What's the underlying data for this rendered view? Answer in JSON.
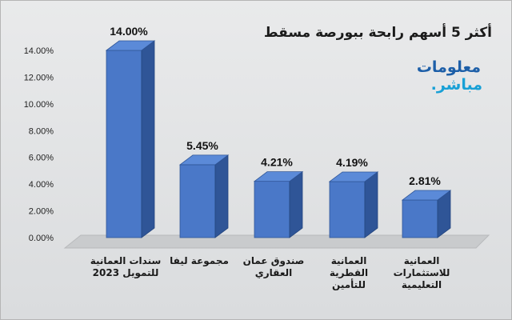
{
  "chart_data": {
    "type": "bar",
    "title": "أكثر 5 أسهم رابحة ببورصة مسقط",
    "categories": [
      "سندات العمانية للتمويل 2023",
      "مجموعة ليفا",
      "صندوق عمان العقاري",
      "العمانية القطرية للتأمين",
      "العمانية للاستثمارات التعليمية"
    ],
    "values": [
      14.0,
      5.45,
      4.21,
      4.19,
      2.81
    ],
    "data_labels": [
      "14.00%",
      "5.45%",
      "4.21%",
      "4.19%",
      "2.81%"
    ],
    "y_ticks": [
      "0.00%",
      "2.00%",
      "4.00%",
      "6.00%",
      "8.00%",
      "10.00%",
      "12.00%",
      "14.00%"
    ],
    "ylim": [
      0,
      14
    ],
    "grid": false,
    "bar_color": "#4472c4",
    "style": "3d-column"
  },
  "logo": {
    "line1": "معلومات",
    "line2": "مباشر."
  }
}
